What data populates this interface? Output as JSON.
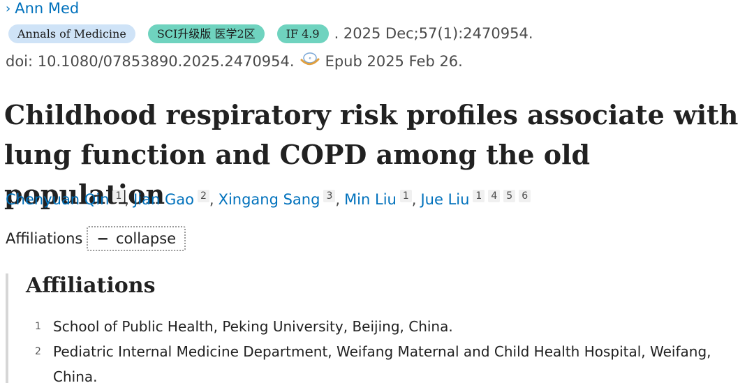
{
  "journal": {
    "link_text": "Ann Med",
    "badges": {
      "journal_name": "Annals of Medicine",
      "sci": "SCI升级版 医学2区",
      "impact_factor": "IF 4.9"
    },
    "citation": ". 2025 Dec;57(1):2470954.",
    "doi": "doi: 10.1080/07853890.2025.2470954.",
    "epub": "Epub 2025 Feb 26."
  },
  "title": "Childhood respiratory risk profiles associate with lung function and COPD among the old population",
  "authors": [
    {
      "name": "Chenyuan Qin",
      "affils": [
        "1"
      ]
    },
    {
      "name": "Jian Gao",
      "affils": [
        "2"
      ]
    },
    {
      "name": "Xingang Sang",
      "affils": [
        "3"
      ]
    },
    {
      "name": "Min Liu",
      "affils": [
        "1"
      ]
    },
    {
      "name": "Jue Liu",
      "affils": [
        "1",
        "4",
        "5",
        "6"
      ]
    }
  ],
  "affiliations_toggle": {
    "label": "Affiliations",
    "button": "collapse",
    "button_symbol": "−"
  },
  "affiliations": {
    "heading": "Affiliations",
    "items": [
      {
        "num": "1",
        "text": "School of Public Health, Peking University, Beijing, China."
      },
      {
        "num": "2",
        "text": "Pediatric Internal Medicine Department, Weifang Maternal and Child Health Hospital, Weifang, China."
      }
    ]
  },
  "colors": {
    "link": "#0071bc",
    "badge_journal": "#cfe3f7",
    "badge_sci": "#6fd3bf"
  },
  "icons": {
    "journal_chevron": "chevron-right-icon",
    "epub": "epub-icon"
  }
}
